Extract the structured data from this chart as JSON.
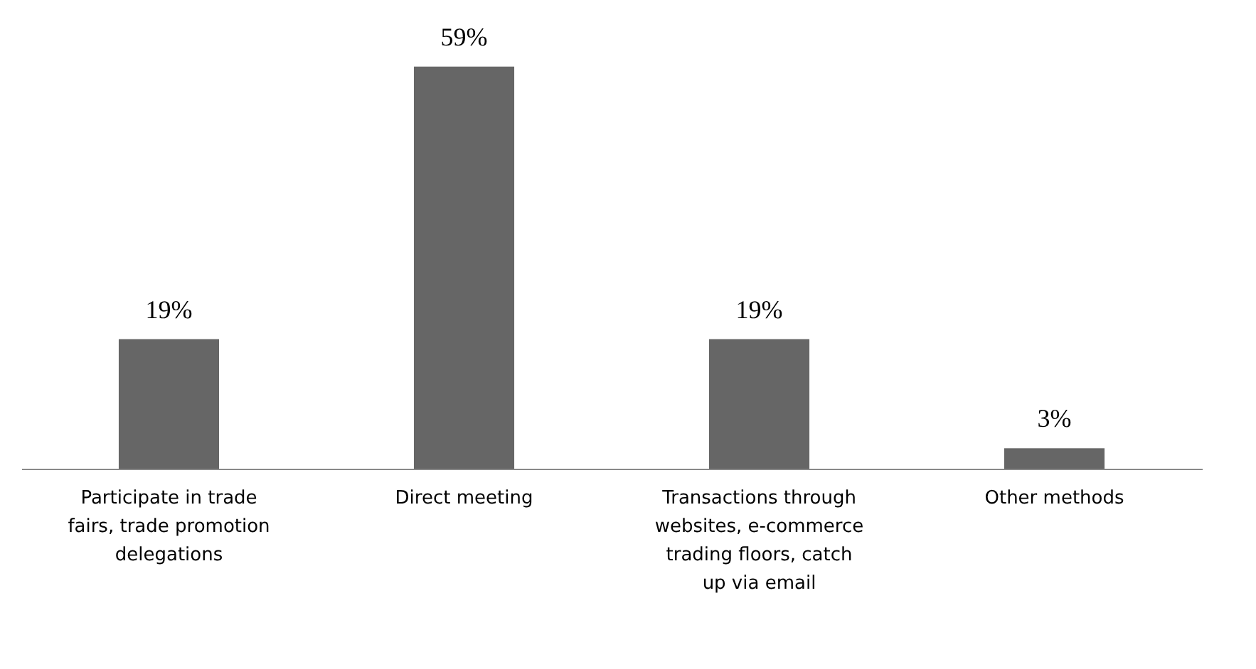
{
  "chart_data": {
    "type": "bar",
    "categories": [
      "Participate in trade fairs, trade promotion delegations",
      "Direct meeting",
      "Transactions through websites, e-commerce trading floors, catch up via email",
      "Other methods"
    ],
    "values": [
      19,
      59,
      19,
      3
    ],
    "color": "#666666",
    "value_labels": [
      "19%",
      "59%",
      "19%",
      "3%"
    ]
  }
}
